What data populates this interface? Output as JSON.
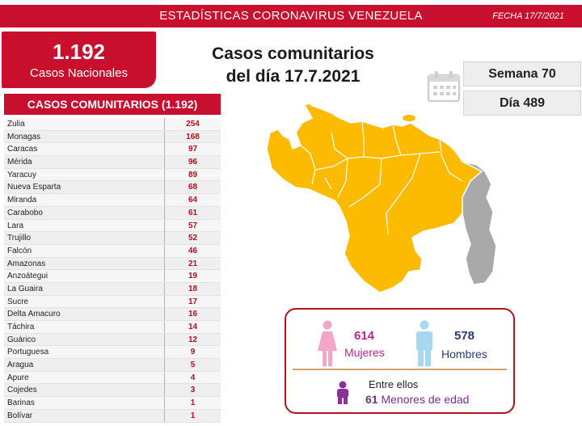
{
  "header": {
    "title": "ESTADÍSTICAS CORONAVIRUS VENEZUELA",
    "date": "FECHA 17/7/2021"
  },
  "national": {
    "count": "1.192",
    "label": "Casos Nacionales"
  },
  "headline": {
    "line1": "Casos comunitarios",
    "line2": "del día 17.7.2021"
  },
  "calendar": {
    "week": "Semana 70",
    "day": "Día 489"
  },
  "table": {
    "title": "CASOS COMUNITARIOS (1.192)",
    "rows": [
      {
        "state": "Zulia",
        "cases": "254"
      },
      {
        "state": "Monagas",
        "cases": "168"
      },
      {
        "state": "Caracas",
        "cases": "97"
      },
      {
        "state": "Mérida",
        "cases": "96"
      },
      {
        "state": "Yaracuy",
        "cases": "89"
      },
      {
        "state": "Nueva Esparta",
        "cases": "68"
      },
      {
        "state": "Miranda",
        "cases": "64"
      },
      {
        "state": "Carabobo",
        "cases": "61"
      },
      {
        "state": "Lara",
        "cases": "57"
      },
      {
        "state": "Trujillo",
        "cases": "52"
      },
      {
        "state": "Falcón",
        "cases": "46"
      },
      {
        "state": "Amazonas",
        "cases": "21"
      },
      {
        "state": "Anzoátegui",
        "cases": "19"
      },
      {
        "state": "La Guaira",
        "cases": "18"
      },
      {
        "state": "Sucre",
        "cases": "17"
      },
      {
        "state": "Delta Amacuro",
        "cases": "16"
      },
      {
        "state": "Táchira",
        "cases": "14"
      },
      {
        "state": "Guárico",
        "cases": "12"
      },
      {
        "state": "Portuguesa",
        "cases": "9"
      },
      {
        "state": "Aragua",
        "cases": "5"
      },
      {
        "state": "Apure",
        "cases": "4"
      },
      {
        "state": "Cojedes",
        "cases": "3"
      },
      {
        "state": "Barinas",
        "cases": "1"
      },
      {
        "state": "Bolívar",
        "cases": "1"
      }
    ]
  },
  "gender": {
    "women_count": "614",
    "women_label": "Mujeres",
    "men_count": "578",
    "men_label": "Hombres",
    "among": "Entre ellos",
    "minors_count": "61",
    "minors_label": "Menores de edad"
  },
  "colors": {
    "brand_red": "#c8102e",
    "map_fill": "#fdbb00",
    "map_disputed": "#a9a9a9",
    "women": "#c0248c",
    "men": "#2c3e70",
    "minors": "#7a2e8e"
  },
  "icons": [
    "calendar-icon",
    "female-icon",
    "male-icon",
    "child-icon",
    "venezuela-map"
  ]
}
